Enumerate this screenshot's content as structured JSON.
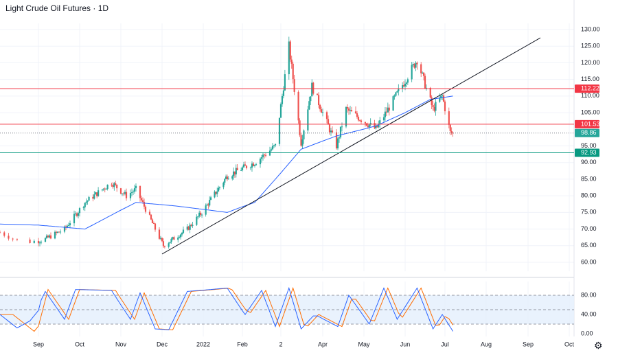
{
  "title": "Light Crude Oil Futures · 1D",
  "icons": {
    "settings": "gear-icon"
  },
  "colors": {
    "up": "#26a69a",
    "down": "#ef5350",
    "ma": "#2962ff",
    "resistance": "#f23645",
    "support": "#089981",
    "last_price": "#26a69a",
    "stoch_k": "#2962ff",
    "stoch_d": "#ff6d00",
    "stoch_band": "#e3effd"
  },
  "chart_data": [
    {
      "type": "candlestick",
      "x_tick_labels": [
        "Sep",
        "Oct",
        "Nov",
        "Dec",
        "2022",
        "Feb",
        "2",
        "Apr",
        "May",
        "Jun",
        "Jul",
        "Aug",
        "Sep",
        "Oct"
      ],
      "y_tick_labels": [
        "130.00",
        "125.00",
        "120.00",
        "115.00",
        "110.00",
        "105.00",
        "95.00",
        "90.00",
        "85.00",
        "80.00",
        "75.00",
        "70.00",
        "65.00",
        "60.00"
      ],
      "ylim": [
        58,
        132
      ],
      "horizontal_levels": [
        {
          "label": "112.22",
          "value": 112.22,
          "role": "resistance"
        },
        {
          "label": "101.53",
          "value": 101.53,
          "role": "resistance"
        },
        {
          "label": "98.86",
          "value": 98.86,
          "role": "last_price"
        },
        {
          "label": "92.93",
          "value": 92.93,
          "role": "support"
        }
      ],
      "trendline": {
        "from": {
          "date": "2021-12-01",
          "value": 62.5
        },
        "to": {
          "date": "2022-09-10",
          "value": 127.5
        }
      },
      "price_anchors": [
        {
          "date": "2021-08-23",
          "value": 69
        },
        {
          "date": "2021-08-28",
          "value": 66
        },
        {
          "date": "2021-09-06",
          "value": 67
        },
        {
          "date": "2021-09-20",
          "value": 70
        },
        {
          "date": "2021-10-05",
          "value": 78
        },
        {
          "date": "2021-10-25",
          "value": 84
        },
        {
          "date": "2021-11-05",
          "value": 80
        },
        {
          "date": "2021-11-12",
          "value": 82
        },
        {
          "date": "2021-11-26",
          "value": 70
        },
        {
          "date": "2021-12-02",
          "value": 65
        },
        {
          "date": "2021-12-20",
          "value": 70
        },
        {
          "date": "2021-12-31",
          "value": 75
        },
        {
          "date": "2022-01-20",
          "value": 86
        },
        {
          "date": "2022-02-10",
          "value": 90
        },
        {
          "date": "2022-02-25",
          "value": 95
        },
        {
          "date": "2022-03-07",
          "value": 125
        },
        {
          "date": "2022-03-16",
          "value": 96
        },
        {
          "date": "2022-03-24",
          "value": 113
        },
        {
          "date": "2022-04-11",
          "value": 95
        },
        {
          "date": "2022-04-18",
          "value": 106
        },
        {
          "date": "2022-05-10",
          "value": 100
        },
        {
          "date": "2022-05-31",
          "value": 114
        },
        {
          "date": "2022-06-10",
          "value": 121
        },
        {
          "date": "2022-06-22",
          "value": 106
        },
        {
          "date": "2022-06-29",
          "value": 110
        },
        {
          "date": "2022-07-05",
          "value": 99
        },
        {
          "date": "2022-07-07",
          "value": 98.86
        }
      ],
      "moving_average_anchors": [
        {
          "date": "2021-08-23",
          "value": 71.5
        },
        {
          "date": "2021-10-05",
          "value": 70
        },
        {
          "date": "2021-11-12",
          "value": 78
        },
        {
          "date": "2021-12-10",
          "value": 77
        },
        {
          "date": "2022-01-20",
          "value": 75
        },
        {
          "date": "2022-02-10",
          "value": 78
        },
        {
          "date": "2022-02-25",
          "value": 85
        },
        {
          "date": "2022-03-16",
          "value": 94
        },
        {
          "date": "2022-04-11",
          "value": 98
        },
        {
          "date": "2022-05-10",
          "value": 101
        },
        {
          "date": "2022-06-01",
          "value": 105
        },
        {
          "date": "2022-06-20",
          "value": 109
        },
        {
          "date": "2022-07-07",
          "value": 110
        }
      ]
    },
    {
      "type": "line",
      "name": "stochastic",
      "y_tick_labels": [
        "80.00",
        "40.00",
        "0.00"
      ],
      "ylim": [
        0,
        100
      ],
      "band": [
        20,
        80
      ],
      "midline": 50,
      "k_anchors": [
        {
          "date": "2021-08-23",
          "value": 40
        },
        {
          "date": "2021-08-28",
          "value": 5
        },
        {
          "date": "2021-09-05",
          "value": 92
        },
        {
          "date": "2021-09-20",
          "value": 30
        },
        {
          "date": "2021-09-28",
          "value": 92
        },
        {
          "date": "2021-10-25",
          "value": 90
        },
        {
          "date": "2021-11-08",
          "value": 30
        },
        {
          "date": "2021-11-15",
          "value": 85
        },
        {
          "date": "2021-11-26",
          "value": 10
        },
        {
          "date": "2021-12-06",
          "value": 8
        },
        {
          "date": "2021-12-20",
          "value": 88
        },
        {
          "date": "2022-01-20",
          "value": 95
        },
        {
          "date": "2022-02-03",
          "value": 40
        },
        {
          "date": "2022-02-15",
          "value": 90
        },
        {
          "date": "2022-02-25",
          "value": 15
        },
        {
          "date": "2022-03-07",
          "value": 95
        },
        {
          "date": "2022-03-16",
          "value": 10
        },
        {
          "date": "2022-03-26",
          "value": 40
        },
        {
          "date": "2022-04-12",
          "value": 15
        },
        {
          "date": "2022-04-20",
          "value": 80
        },
        {
          "date": "2022-05-05",
          "value": 20
        },
        {
          "date": "2022-05-16",
          "value": 95
        },
        {
          "date": "2022-05-26",
          "value": 30
        },
        {
          "date": "2022-06-10",
          "value": 95
        },
        {
          "date": "2022-06-22",
          "value": 10
        },
        {
          "date": "2022-06-29",
          "value": 40
        },
        {
          "date": "2022-07-07",
          "value": 5
        }
      ],
      "d_lag_days": 3
    }
  ]
}
